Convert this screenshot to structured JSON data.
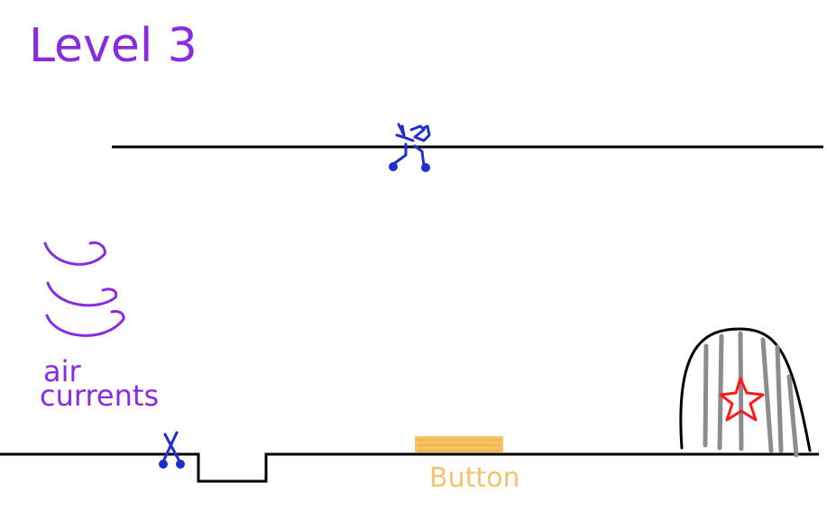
{
  "level": {
    "title": "Level 3"
  },
  "labels": {
    "air_currents_line1": "air",
    "air_currents_line2": "currents",
    "button": "Button"
  },
  "colors": {
    "background": "#ffffff",
    "platform": "#000000",
    "title": "#8a2be2",
    "air_currents": "#8a2be2",
    "scissors": "#1f2ecf",
    "button_fill": "#f6c36b",
    "cage_bars": "#8c8c8c",
    "cage_outline": "#000000",
    "star": "#ff1a1a"
  },
  "icons": {
    "upper_character": "scissors-walker-icon",
    "lower_character": "scissors-icon",
    "air_currents": "air-current-swirl-icon",
    "cage": "cage-icon",
    "goal": "star-icon"
  }
}
